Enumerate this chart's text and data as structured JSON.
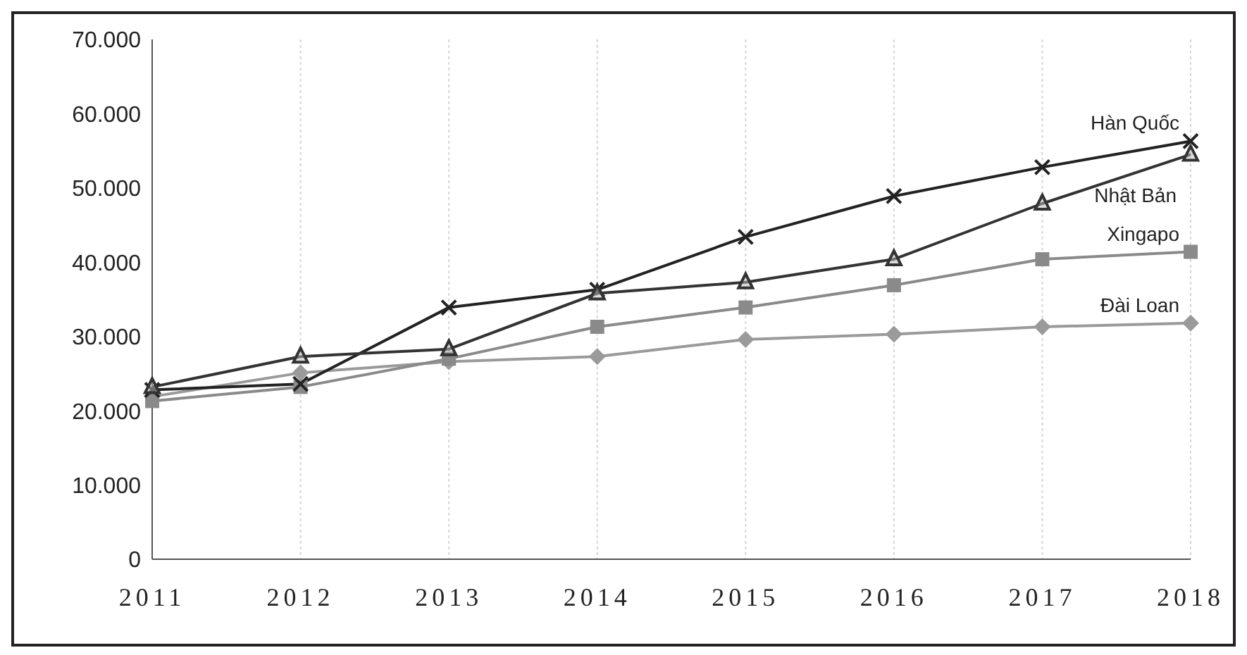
{
  "chart_data": {
    "type": "line",
    "categories": [
      "2011",
      "2012",
      "2013",
      "2014",
      "2015",
      "2016",
      "2017",
      "2018"
    ],
    "series": [
      {
        "name": "Hàn Quốc",
        "color": "#222222",
        "marker": "cross",
        "values": [
          22800,
          23600,
          33900,
          36300,
          43400,
          48900,
          52800,
          56300
        ]
      },
      {
        "name": "Nhật Bản",
        "color": "#333333",
        "marker": "triangle",
        "values": [
          23200,
          27300,
          28300,
          35800,
          37300,
          40400,
          47900,
          54500
        ]
      },
      {
        "name": "Xingapo",
        "color": "#8a8a8a",
        "marker": "square",
        "values": [
          21300,
          23200,
          27000,
          31300,
          33900,
          36900,
          40400,
          41400
        ]
      },
      {
        "name": "Đài Loan",
        "color": "#9a9a9a",
        "marker": "diamond",
        "values": [
          21900,
          25100,
          26600,
          27300,
          29600,
          30300,
          31300,
          31800
        ]
      }
    ],
    "ylim": [
      0,
      70000
    ],
    "yticks": [
      {
        "value": 0,
        "label": "0"
      },
      {
        "value": 10000,
        "label": "10.000"
      },
      {
        "value": 20000,
        "label": "20.000"
      },
      {
        "value": 30000,
        "label": "30.000"
      },
      {
        "value": 40000,
        "label": "40.000"
      },
      {
        "value": 50000,
        "label": "50.000"
      },
      {
        "value": 60000,
        "label": "60.000"
      },
      {
        "value": 70000,
        "label": "70.000"
      }
    ],
    "grid": "x",
    "legend": false
  }
}
